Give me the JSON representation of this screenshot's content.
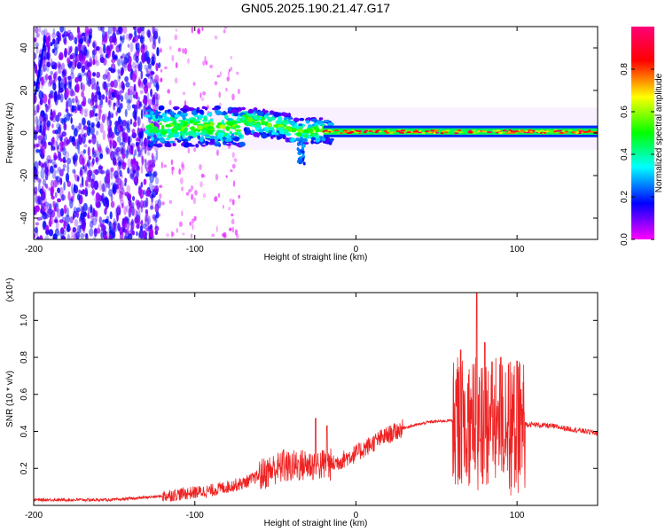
{
  "chart_data": [
    {
      "type": "heatmap",
      "title": "GN05.2025.190.21.47.G17",
      "xlabel": "Height of straight line (km)",
      "ylabel": "Frequency (Hz)",
      "xlim": [
        -200,
        150
      ],
      "ylim": [
        -50,
        50
      ],
      "xticks": [
        "-200",
        "-100",
        "0",
        "100"
      ],
      "yticks": [
        "-40",
        "-20",
        "0",
        "20",
        "40"
      ],
      "colorbar": {
        "label": "Normalized spectral amplitude",
        "range": [
          0,
          1
        ],
        "ticks": [
          "0.0",
          "0.2",
          "0.4",
          "0.6",
          "0.8"
        ],
        "colors": [
          "#ff00ff",
          "#0000ff",
          "#00ffff",
          "#00ff00",
          "#ffff00",
          "#ff0000",
          "#ff0077"
        ]
      },
      "description_segments": [
        {
          "x": [
            -200,
            -125
          ],
          "f_center": 0,
          "f_spread": 50,
          "amplitude": 0.1
        },
        {
          "x": [
            -130,
            -60
          ],
          "f_center": 3,
          "f_spread": 10,
          "amplitude": 0.35
        },
        {
          "x": [
            -75,
            -15
          ],
          "f_center": 4,
          "f_spread": 6,
          "amplitude": 0.3
        },
        {
          "x": [
            -20,
            150
          ],
          "f_center": 1,
          "f_spread": 1,
          "amplitude": 0.65
        }
      ]
    },
    {
      "type": "line",
      "xlabel": "Height of straight line (km)",
      "ylabel": "SNR (10 * v/v)",
      "y_multiplier": "(x10⁴)",
      "xlim": [
        -200,
        150
      ],
      "ylim": [
        0,
        1.15
      ],
      "xticks": [
        "-200",
        "-100",
        "0",
        "100"
      ],
      "yticks": [
        "0.2",
        "0.4",
        "0.6",
        "0.8",
        "1.0"
      ],
      "color": "#ee2222",
      "envelope": [
        {
          "x": -200,
          "y": 0.03
        },
        {
          "x": -150,
          "y": 0.03
        },
        {
          "x": -120,
          "y": 0.05
        },
        {
          "x": -90,
          "y": 0.08
        },
        {
          "x": -70,
          "y": 0.12
        },
        {
          "x": -50,
          "y": 0.2
        },
        {
          "x": -30,
          "y": 0.22
        },
        {
          "x": -15,
          "y": 0.22
        },
        {
          "x": 0,
          "y": 0.28
        },
        {
          "x": 15,
          "y": 0.36
        },
        {
          "x": 30,
          "y": 0.42
        },
        {
          "x": 45,
          "y": 0.45
        },
        {
          "x": 60,
          "y": 0.46
        },
        {
          "x": 80,
          "y": 0.45
        },
        {
          "x": 105,
          "y": 0.44
        },
        {
          "x": 120,
          "y": 0.43
        },
        {
          "x": 150,
          "y": 0.39
        }
      ],
      "peaks": [
        {
          "x": -45,
          "y": 0.3
        },
        {
          "x": -25,
          "y": 0.47
        },
        {
          "x": -18,
          "y": 0.43
        },
        {
          "x": 65,
          "y": 0.84
        },
        {
          "x": 75,
          "y": 1.15
        },
        {
          "x": 80,
          "y": 0.88
        },
        {
          "x": 90,
          "y": 0.8
        },
        {
          "x": 100,
          "y": 0.78
        }
      ]
    }
  ]
}
